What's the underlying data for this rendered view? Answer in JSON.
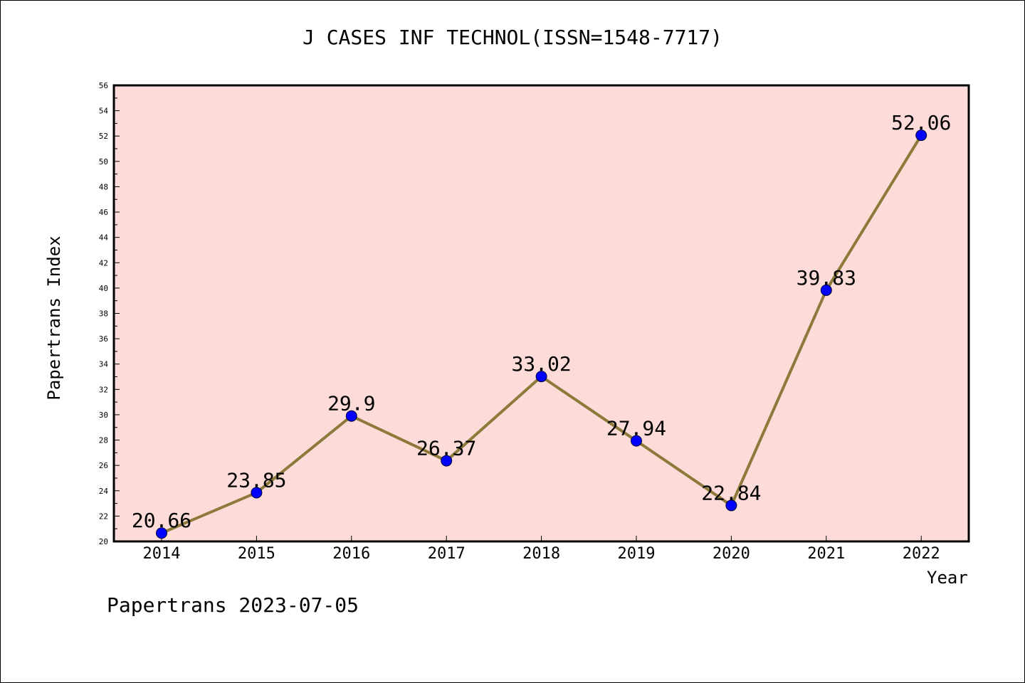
{
  "chart_data": {
    "type": "line",
    "title": "J CASES INF TECHNOL(ISSN=1548-7717)",
    "xlabel": "Year",
    "ylabel": "Papertrans Index",
    "categories": [
      "2014",
      "2015",
      "2016",
      "2017",
      "2018",
      "2019",
      "2020",
      "2021",
      "2022"
    ],
    "values": [
      20.66,
      23.85,
      29.9,
      26.37,
      33.02,
      27.94,
      22.84,
      39.83,
      52.06
    ],
    "data_labels": [
      "20.66",
      "23.85",
      "29.9",
      "26.37",
      "33.02",
      "27.94",
      "22.84",
      "39.83",
      "52.06"
    ],
    "ylim": [
      20,
      56
    ],
    "yticks": [
      20,
      22,
      24,
      26,
      28,
      30,
      32,
      34,
      36,
      38,
      40,
      42,
      44,
      46,
      48,
      50,
      52,
      54,
      56
    ],
    "grid": false,
    "legend": "none",
    "colors": {
      "plot_background": "#fddbd8",
      "line": "#8b7a3a",
      "marker": "#0000ff",
      "axes": "#000000"
    }
  },
  "footer": {
    "note": "Papertrans 2023-07-05"
  }
}
